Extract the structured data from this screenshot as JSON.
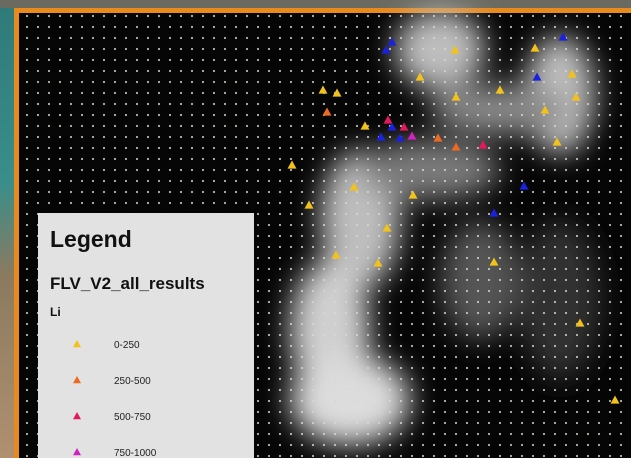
{
  "legend": {
    "title": "Legend",
    "layer": "FLV_V2_all_results",
    "field": "Li",
    "items": [
      {
        "label": "0-250",
        "color": "#f2c21b"
      },
      {
        "label": "250-500",
        "color": "#ee6a22"
      },
      {
        "label": "500-750",
        "color": "#e2195c"
      },
      {
        "label": "750-1000",
        "color": "#cf22c0"
      }
    ]
  }
}
